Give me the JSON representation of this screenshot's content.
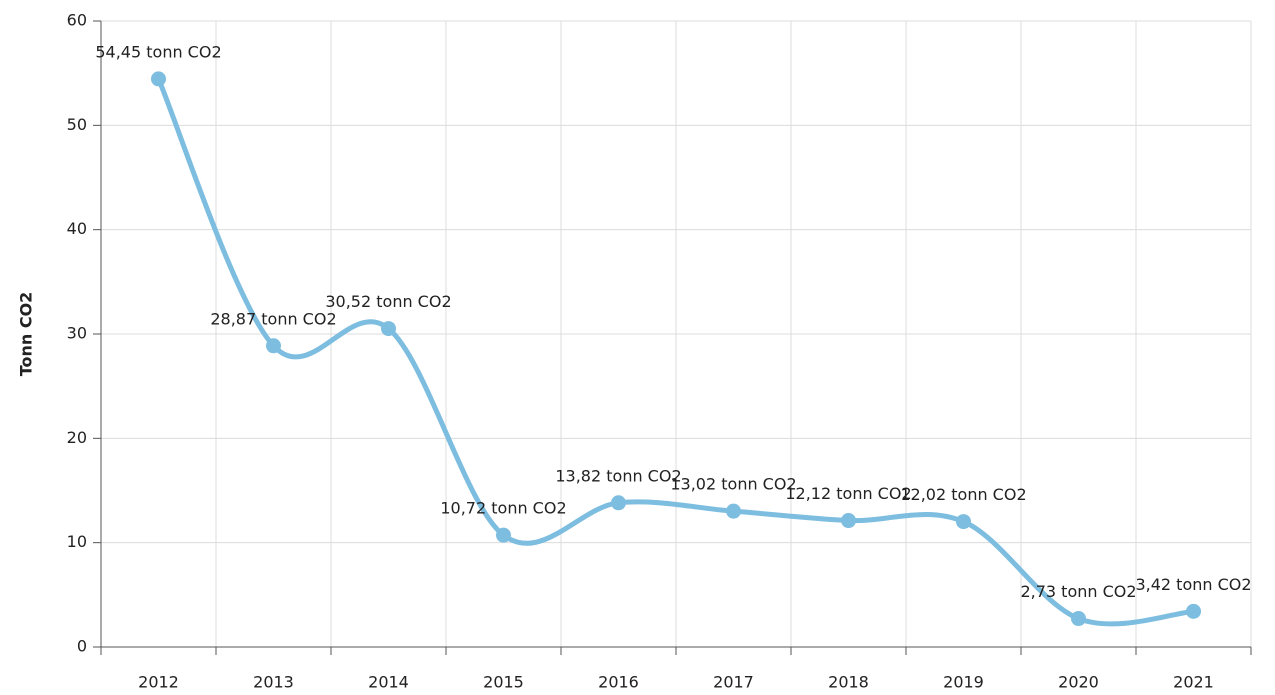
{
  "chart_data": {
    "type": "line",
    "y_label": "Tonn CO2",
    "categories": [
      "2012",
      "2013",
      "2014",
      "2015",
      "2016",
      "2017",
      "2018",
      "2019",
      "2020",
      "2021"
    ],
    "series": [
      {
        "name": "Tonn CO2",
        "color": "#7dbde0",
        "values": [
          54.45,
          28.87,
          30.52,
          10.72,
          13.82,
          13.02,
          12.12,
          12.02,
          2.73,
          3.42
        ],
        "value_labels": [
          "54,45 tonn CO2",
          "28,87 tonn CO2",
          "30,52 tonn CO2",
          "10,72 tonn CO2",
          "13,82 tonn CO2",
          "13,02 tonn CO2",
          "12,12 tonn CO2",
          "12,02 tonn CO2",
          "2,73 tonn CO2",
          "3,42 tonn CO2"
        ]
      }
    ],
    "ylim": [
      0,
      60
    ],
    "yticks": [
      0,
      10,
      20,
      30,
      40,
      50,
      60
    ],
    "grid": true
  }
}
